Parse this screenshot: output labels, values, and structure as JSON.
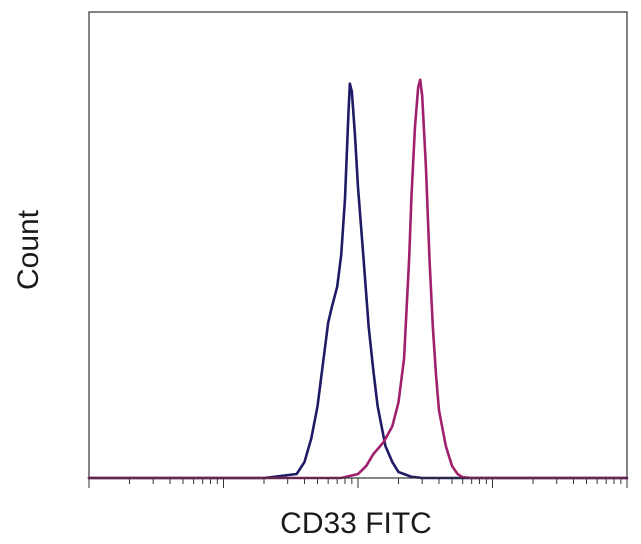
{
  "chart_data": {
    "type": "line",
    "title": "",
    "xlabel": "CD33 FITC",
    "ylabel": "Count",
    "x_scale": "log",
    "xlim": [
      1,
      10000
    ],
    "ylim": [
      0,
      1.17
    ],
    "grid": false,
    "legend": "none",
    "series": [
      {
        "color": "#1f1a66",
        "points": [
          [
            1,
            0
          ],
          [
            20,
            0
          ],
          [
            35,
            0.01
          ],
          [
            40,
            0.04
          ],
          [
            45,
            0.1
          ],
          [
            50,
            0.18
          ],
          [
            55,
            0.29
          ],
          [
            60,
            0.39
          ],
          [
            64,
            0.43
          ],
          [
            70,
            0.48
          ],
          [
            75,
            0.56
          ],
          [
            80,
            0.7
          ],
          [
            85,
            0.92
          ],
          [
            87,
            0.99
          ],
          [
            90,
            0.97
          ],
          [
            95,
            0.86
          ],
          [
            100,
            0.73
          ],
          [
            110,
            0.55
          ],
          [
            120,
            0.38
          ],
          [
            130,
            0.27
          ],
          [
            140,
            0.18
          ],
          [
            160,
            0.08
          ],
          [
            180,
            0.04
          ],
          [
            200,
            0.015
          ],
          [
            250,
            0.003
          ],
          [
            300,
            0
          ],
          [
            10000,
            0
          ]
        ]
      },
      {
        "color": "#a0206e",
        "points": [
          [
            1,
            0
          ],
          [
            75,
            0
          ],
          [
            100,
            0.01
          ],
          [
            115,
            0.03
          ],
          [
            130,
            0.06
          ],
          [
            155,
            0.09
          ],
          [
            180,
            0.13
          ],
          [
            200,
            0.19
          ],
          [
            220,
            0.3
          ],
          [
            240,
            0.55
          ],
          [
            250,
            0.71
          ],
          [
            265,
            0.88
          ],
          [
            280,
            0.98
          ],
          [
            290,
            1.0
          ],
          [
            300,
            0.96
          ],
          [
            320,
            0.78
          ],
          [
            340,
            0.55
          ],
          [
            360,
            0.38
          ],
          [
            380,
            0.26
          ],
          [
            400,
            0.17
          ],
          [
            450,
            0.08
          ],
          [
            500,
            0.03
          ],
          [
            550,
            0.01
          ],
          [
            600,
            0.002
          ],
          [
            700,
            0
          ],
          [
            10000,
            0
          ]
        ]
      }
    ]
  }
}
